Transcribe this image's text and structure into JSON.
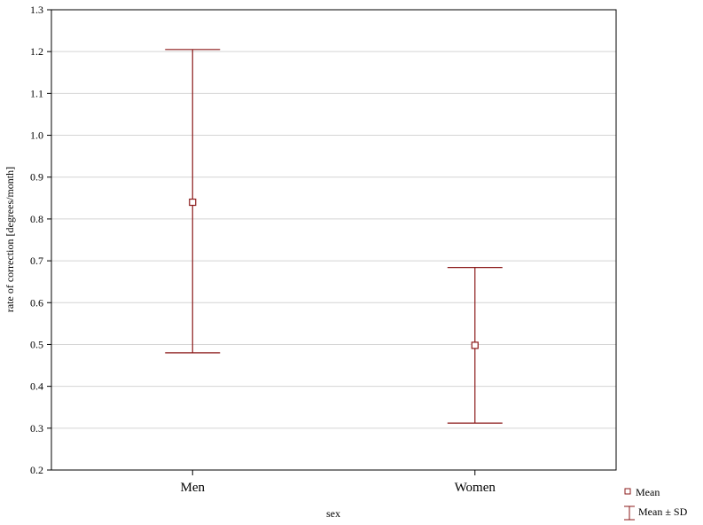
{
  "chart_data": {
    "type": "errorbar",
    "title": "",
    "xlabel": "sex",
    "ylabel": "rate of correction [degrees/month]",
    "categories": [
      "Men",
      "Women"
    ],
    "mean": [
      0.84,
      0.498
    ],
    "lower": [
      0.48,
      0.312
    ],
    "upper": [
      1.205,
      0.684
    ],
    "ylim": [
      0.2,
      1.3
    ],
    "yticks": [
      "0.2",
      "0.3",
      "0.4",
      "0.5",
      "0.6",
      "0.7",
      "0.8",
      "0.9",
      "1.0",
      "1.1",
      "1.2",
      "1.3"
    ],
    "grid": true,
    "color": "#8b1a1a",
    "legend": {
      "position": "bottom-right",
      "entries": [
        "Mean",
        "Mean ± SD"
      ]
    }
  }
}
